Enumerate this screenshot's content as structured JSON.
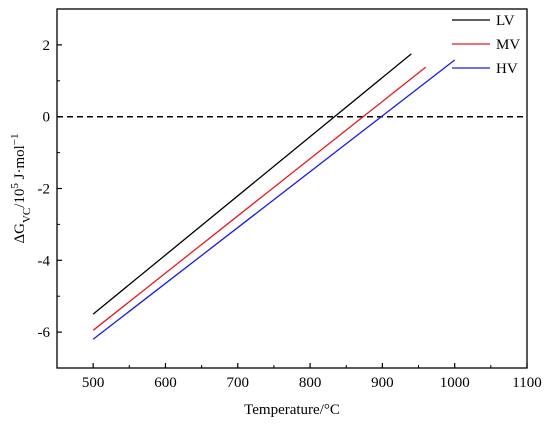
{
  "chart_data": {
    "type": "line",
    "xlabel": "Temperature/°C",
    "ylabel": {
      "prefix": "ΔG",
      "sub": "VC",
      "mid": "/10",
      "sup": "5",
      "unit": " J·mol",
      "unit_sup": "−1"
    },
    "xlim": [
      450,
      1100
    ],
    "ylim": [
      -7,
      3
    ],
    "xticks": [
      500,
      600,
      700,
      800,
      900,
      1000,
      1100
    ],
    "yticks": [
      -6,
      -4,
      -2,
      0,
      2
    ],
    "grid": false,
    "legend_position": "top-right",
    "reference_line": {
      "y": 0,
      "style": "dashed",
      "color": "#000000"
    },
    "series": [
      {
        "name": "LV",
        "color": "#000000",
        "x": [
          500,
          940
        ],
        "y": [
          -5.5,
          1.75
        ]
      },
      {
        "name": "MV",
        "color": "#e8191f",
        "x": [
          500,
          960
        ],
        "y": [
          -5.95,
          1.38
        ]
      },
      {
        "name": "HV",
        "color": "#1a1ae6",
        "x": [
          500,
          1000
        ],
        "y": [
          -6.2,
          1.58
        ]
      }
    ]
  }
}
